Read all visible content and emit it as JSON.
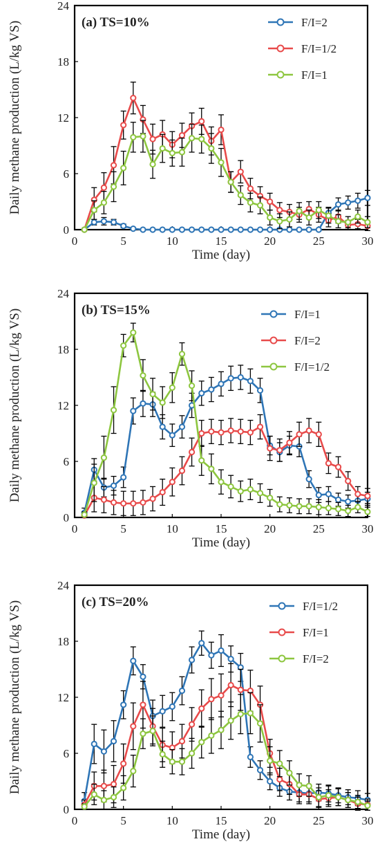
{
  "chart_data": [
    {
      "type": "line",
      "panel_label": "(a) TS=10%",
      "xlabel": "Time (day)",
      "ylabel": "Daily methane production (L/kg VS)",
      "xlim": [
        0,
        30
      ],
      "ylim": [
        0,
        24
      ],
      "xticks": [
        0,
        5,
        10,
        15,
        20,
        25,
        30
      ],
      "yticks": [
        0,
        6,
        12,
        18,
        24
      ],
      "x": [
        1,
        2,
        3,
        4,
        5,
        6,
        7,
        8,
        9,
        10,
        11,
        12,
        13,
        14,
        15,
        16,
        17,
        18,
        19,
        20,
        21,
        22,
        23,
        24,
        25,
        26,
        27,
        28,
        29,
        30
      ],
      "legend_position": "top-right",
      "series": [
        {
          "name": "F/I=2",
          "color": "#2E75B6",
          "values": [
            0,
            0.8,
            0.9,
            0.8,
            0.4,
            0.1,
            0,
            0,
            0,
            0,
            0,
            0,
            0,
            0,
            0,
            0,
            0,
            0,
            0,
            0,
            0,
            0,
            0,
            0,
            0,
            1.8,
            2.7,
            2.9,
            3.1,
            3.4
          ],
          "errors": [
            0,
            0.3,
            0.4,
            0.3,
            0.2,
            0,
            0,
            0,
            0,
            0,
            0,
            0,
            0,
            0,
            0,
            0,
            0,
            0,
            0,
            0,
            0,
            0,
            0,
            0,
            0,
            0.6,
            0.7,
            0.7,
            0.8,
            0.8
          ]
        },
        {
          "name": "F/I=1/2",
          "color": "#E84A4A",
          "values": [
            0,
            3.2,
            4.5,
            6.9,
            11.2,
            14.1,
            11.8,
            9.7,
            10.2,
            9.1,
            10.1,
            11.1,
            11.6,
            9.5,
            10.7,
            5.1,
            6.2,
            4.4,
            3.6,
            3.0,
            2.1,
            1.9,
            1.6,
            2.2,
            1.6,
            1.0,
            1.4,
            0.5,
            0.6,
            0.4
          ],
          "errors": [
            0,
            1.3,
            1.6,
            2.0,
            1.5,
            1.7,
            1.5,
            1.6,
            1.5,
            1.4,
            1.3,
            1.4,
            1.4,
            1.5,
            1.6,
            1.1,
            1.2,
            1.1,
            1.0,
            0.9,
            0.8,
            0.8,
            0.8,
            0.8,
            0.8,
            0.7,
            0.7,
            0.5,
            0.5,
            0.5
          ]
        },
        {
          "name": "F/I=1",
          "color": "#8DC63F",
          "values": [
            0,
            2.1,
            2.9,
            4.6,
            6.6,
            9.9,
            10.0,
            7.0,
            8.7,
            8.2,
            8.3,
            9.8,
            9.7,
            8.7,
            7.2,
            5.1,
            3.7,
            2.9,
            2.6,
            1.3,
            0.9,
            1.1,
            2.0,
            1.3,
            2.1,
            1.5,
            0.9,
            0.8,
            1.4,
            0.8
          ],
          "errors": [
            0,
            1.0,
            1.2,
            1.6,
            1.8,
            1.6,
            1.7,
            1.5,
            1.5,
            1.4,
            1.5,
            1.5,
            1.5,
            1.6,
            1.5,
            1.1,
            1.0,
            1.0,
            0.9,
            0.8,
            0.8,
            0.8,
            0.9,
            0.8,
            0.9,
            0.8,
            0.7,
            0.6,
            0.7,
            0.6
          ]
        }
      ]
    },
    {
      "type": "line",
      "panel_label": "(b) TS=15%",
      "xlabel": "Time (day)",
      "ylabel": "Daily methane production (L/kg VS)",
      "xlim": [
        0,
        30
      ],
      "ylim": [
        0,
        24
      ],
      "xticks": [
        0,
        5,
        10,
        15,
        20,
        25,
        30
      ],
      "yticks": [
        0,
        6,
        12,
        18,
        24
      ],
      "x": [
        1,
        2,
        3,
        4,
        5,
        6,
        7,
        8,
        9,
        10,
        11,
        12,
        13,
        14,
        15,
        16,
        17,
        18,
        19,
        20,
        21,
        22,
        23,
        24,
        25,
        26,
        27,
        28,
        29,
        30
      ],
      "legend_position": "top-right",
      "series": [
        {
          "name": "F/I=1",
          "color": "#2E75B6",
          "values": [
            0.5,
            5.1,
            3.2,
            3.4,
            4.3,
            11.4,
            12.2,
            12.1,
            9.7,
            8.8,
            9.7,
            12.0,
            13.3,
            13.7,
            14.3,
            14.9,
            15.0,
            14.6,
            13.6,
            7.7,
            7.0,
            7.7,
            7.6,
            4.1,
            2.4,
            2.5,
            1.9,
            1.7,
            1.8,
            2.0
          ],
          "errors": [
            0.5,
            1.2,
            1.0,
            1.0,
            1.1,
            1.4,
            1.4,
            1.3,
            1.3,
            1.2,
            1.2,
            1.3,
            1.3,
            1.3,
            1.3,
            1.3,
            1.3,
            1.3,
            1.3,
            1.0,
            1.0,
            1.0,
            1.1,
            0.9,
            0.8,
            0.8,
            0.7,
            0.7,
            0.7,
            0.7
          ]
        },
        {
          "name": "F/I=2",
          "color": "#E84A4A",
          "values": [
            0.2,
            2.1,
            1.9,
            1.6,
            1.5,
            1.5,
            1.6,
            2.0,
            2.7,
            3.8,
            5.0,
            7.0,
            9.0,
            9.2,
            9.1,
            9.3,
            9.2,
            9.1,
            9.7,
            7.4,
            7.2,
            8.0,
            8.9,
            9.3,
            8.9,
            5.8,
            5.4,
            3.9,
            2.5,
            2.3
          ],
          "errors": [
            0.2,
            1.5,
            1.4,
            1.3,
            1.3,
            1.3,
            1.3,
            1.3,
            1.4,
            1.5,
            1.5,
            1.5,
            1.4,
            1.3,
            1.3,
            1.3,
            1.3,
            1.3,
            1.3,
            1.3,
            1.2,
            1.2,
            1.3,
            1.3,
            1.3,
            1.1,
            1.1,
            1.0,
            0.8,
            0.8
          ]
        },
        {
          "name": "F/I=1/2",
          "color": "#8DC63F",
          "values": [
            0.3,
            3.7,
            6.4,
            11.5,
            18.4,
            19.8,
            15.2,
            13.2,
            12.3,
            13.9,
            17.5,
            14.1,
            6.1,
            5.2,
            3.8,
            3.3,
            2.8,
            3.0,
            2.6,
            2.1,
            1.4,
            1.3,
            1.2,
            1.2,
            1.1,
            1.0,
            0.9,
            0.7,
            1.1,
            0.6
          ],
          "errors": [
            0.3,
            2.0,
            2.3,
            2.5,
            1.2,
            1.0,
            1.7,
            1.7,
            1.7,
            1.6,
            1.2,
            1.6,
            1.6,
            1.6,
            1.3,
            1.2,
            1.1,
            1.1,
            1.0,
            0.9,
            0.8,
            0.8,
            0.8,
            0.8,
            0.8,
            0.7,
            0.7,
            0.6,
            0.6,
            0.5
          ]
        }
      ]
    },
    {
      "type": "line",
      "panel_label": "(c) TS=20%",
      "xlabel": "Time (day)",
      "ylabel": "Daily methane production (L/kg VS)",
      "xlim": [
        0,
        30
      ],
      "ylim": [
        0,
        24
      ],
      "xticks": [
        0,
        5,
        10,
        15,
        20,
        25,
        30
      ],
      "yticks": [
        0,
        6,
        12,
        18,
        24
      ],
      "x": [
        1,
        2,
        3,
        4,
        5,
        6,
        7,
        8,
        9,
        10,
        11,
        12,
        13,
        14,
        15,
        16,
        17,
        18,
        19,
        20,
        21,
        22,
        23,
        24,
        25,
        26,
        27,
        28,
        29,
        30
      ],
      "legend_position": "top-right",
      "series": [
        {
          "name": "F/I=1/2",
          "color": "#2E75B6",
          "values": [
            0.9,
            7.0,
            6.2,
            7.3,
            11.2,
            15.9,
            14.2,
            10.0,
            10.5,
            11.0,
            12.7,
            16.0,
            17.8,
            16.5,
            17.0,
            16.1,
            15.2,
            5.6,
            4.2,
            3.0,
            2.3,
            1.9,
            1.8,
            1.7,
            1.8,
            1.7,
            1.5,
            1.3,
            1.2,
            1.0
          ],
          "errors": [
            0.9,
            2.1,
            2.3,
            2.2,
            1.5,
            1.5,
            1.3,
            1.7,
            1.7,
            1.5,
            1.5,
            1.4,
            1.3,
            1.4,
            1.7,
            1.4,
            1.5,
            1.1,
            1.0,
            0.9,
            0.9,
            0.9,
            1.0,
            0.9,
            0.9,
            0.9,
            0.8,
            0.8,
            0.8,
            0.7
          ]
        },
        {
          "name": "F/I=1",
          "color": "#E84A4A",
          "values": [
            0.5,
            2.5,
            2.5,
            2.7,
            4.9,
            8.9,
            11.2,
            8.9,
            6.9,
            6.6,
            7.3,
            9.1,
            10.8,
            11.8,
            12.2,
            13.3,
            12.8,
            12.7,
            11.2,
            6.0,
            3.2,
            2.7,
            1.6,
            1.6,
            1.1,
            1.2,
            1.3,
            1.0,
            0.6,
            0.5
          ],
          "errors": [
            0.5,
            1.5,
            1.7,
            2.0,
            2.1,
            2.5,
            2.5,
            1.9,
            1.8,
            1.7,
            1.8,
            1.8,
            2.0,
            2.2,
            2.3,
            2.3,
            2.2,
            2.2,
            2.0,
            1.5,
            1.2,
            1.1,
            1.0,
            1.0,
            0.9,
            0.9,
            0.9,
            0.8,
            0.7,
            0.6
          ]
        },
        {
          "name": "F/I=2",
          "color": "#8DC63F",
          "values": [
            0.3,
            1.6,
            1.0,
            1.3,
            2.3,
            4.1,
            8.1,
            8.4,
            5.9,
            5.1,
            5.1,
            6.0,
            7.2,
            7.9,
            8.5,
            9.5,
            10.2,
            10.3,
            9.2,
            5.2,
            4.9,
            3.9,
            2.6,
            2.5,
            1.3,
            1.5,
            1.3,
            1.0,
            0.8,
            0.4
          ],
          "errors": [
            0.3,
            1.1,
            1.0,
            1.1,
            1.3,
            1.7,
            1.6,
            1.6,
            1.4,
            1.3,
            1.4,
            1.6,
            1.7,
            1.9,
            2.0,
            2.0,
            2.1,
            2.2,
            2.0,
            1.5,
            1.4,
            1.3,
            1.2,
            1.1,
            1.0,
            1.0,
            0.9,
            0.8,
            0.7,
            0.5
          ]
        }
      ]
    }
  ]
}
